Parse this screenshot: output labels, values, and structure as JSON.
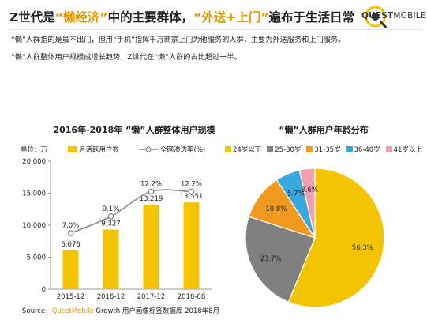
{
  "header": {
    "title_pre": "Z世代是",
    "title_hl": "“懒经济”",
    "title_mid": "中的主要群体，",
    "title_hl2": "“外送+上门”",
    "title_post": "遍布于生活日常",
    "brand_bold": "QUEST",
    "brand_light": "MOBILE"
  },
  "bullets": [
    "“懒”人群指的是虽不出门，但用“手机”指挥千万商家上门为他服务的人群，主要为外送服务和上门服务。",
    "“懒”人群整体用户规模成增长趋势，Z世代在“懒”人群的占比超过一半。"
  ],
  "footer": {
    "prefix": "Source：",
    "brand": "QuestMobile",
    "rest": " Growth 用户画像标签数据库 2018年8月"
  },
  "colors": {
    "accent": "#f5c400",
    "title_highlight": "#e09a00",
    "line": "#888888"
  },
  "chart_data": [
    {
      "type": "bar",
      "title": "2016年-2018年 “懒”人群整体用户规模",
      "unit_label": "单位：万",
      "categories": [
        "2015-12",
        "2016-12",
        "2017-12",
        "2018-08"
      ],
      "series": [
        {
          "name": "月活跃用户数",
          "type": "bar",
          "values": [
            6076,
            9327,
            13219,
            13551
          ],
          "labels": [
            "6,076",
            "9,327",
            "13,219",
            "13,551"
          ],
          "color": "#f5c400"
        },
        {
          "name": "全网渗透率(%)",
          "type": "line",
          "values": [
            7.0,
            9.1,
            12.2,
            12.2
          ],
          "labels": [
            "7.0%",
            "9.1%",
            "12.2%",
            "12.2%"
          ],
          "color": "#888888"
        }
      ],
      "y_ticks": [
        "0",
        "5,000",
        "10,000",
        "15,000",
        "20,000"
      ],
      "ylim": [
        0,
        20000
      ],
      "y2lim": [
        0,
        16
      ],
      "grid": false
    },
    {
      "type": "pie",
      "title": "“懒”人群用户年龄分布",
      "categories": [
        "24岁以下",
        "25-30岁",
        "31-35岁",
        "36-40岁",
        "41岁以上"
      ],
      "values": [
        56.3,
        23.7,
        10.8,
        5.7,
        3.6
      ],
      "labels": [
        "56.3%",
        "23.7%",
        "10.8%",
        "5.7%",
        "3.6%"
      ],
      "colors": [
        "#f5c400",
        "#808080",
        "#f29a1f",
        "#3aa8dc",
        "#ef9fb0"
      ],
      "legend": "top"
    }
  ]
}
